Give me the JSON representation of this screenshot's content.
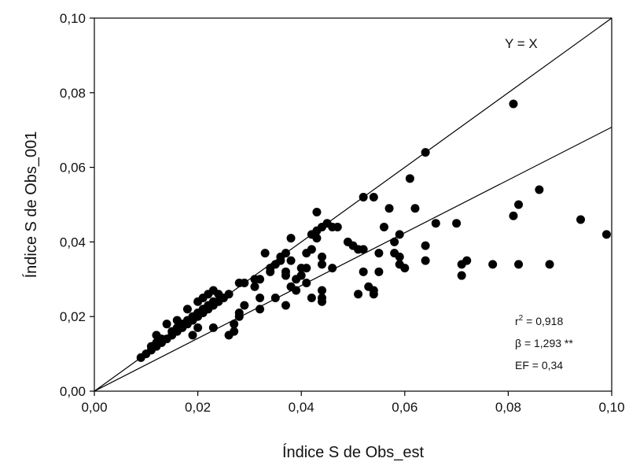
{
  "chart_data": {
    "type": "scatter",
    "title": "",
    "xlabel": "Índice S de Obs_est",
    "ylabel": "Índice S de Obs_001",
    "xlim": [
      0,
      0.1
    ],
    "ylim": [
      0,
      0.1
    ],
    "x_ticks": [
      "0,00",
      "0,02",
      "0,04",
      "0,06",
      "0,08",
      "0,10"
    ],
    "y_ticks": [
      "0,00",
      "0,02",
      "0,04",
      "0,06",
      "0,08",
      "0,10"
    ],
    "grid": false,
    "identity_line": {
      "label": "Y = X",
      "slope": 1.0
    },
    "fit_line": {
      "slope": 0.7076
    },
    "annotations": {
      "r2_prefix": "r",
      "r2_sup": "2",
      "r2_value": " = 0,918",
      "beta": "β = 1,293 **",
      "ef": "EF = 0,34"
    },
    "points": [
      [
        0.009,
        0.009
      ],
      [
        0.01,
        0.01
      ],
      [
        0.011,
        0.011
      ],
      [
        0.011,
        0.012
      ],
      [
        0.012,
        0.012
      ],
      [
        0.012,
        0.013
      ],
      [
        0.013,
        0.013
      ],
      [
        0.013,
        0.014
      ],
      [
        0.014,
        0.014
      ],
      [
        0.015,
        0.015
      ],
      [
        0.015,
        0.016
      ],
      [
        0.016,
        0.016
      ],
      [
        0.016,
        0.017
      ],
      [
        0.017,
        0.017
      ],
      [
        0.017,
        0.018
      ],
      [
        0.018,
        0.018
      ],
      [
        0.018,
        0.019
      ],
      [
        0.019,
        0.019
      ],
      [
        0.019,
        0.02
      ],
      [
        0.02,
        0.02
      ],
      [
        0.02,
        0.021
      ],
      [
        0.021,
        0.021
      ],
      [
        0.021,
        0.022
      ],
      [
        0.022,
        0.022
      ],
      [
        0.022,
        0.023
      ],
      [
        0.023,
        0.023
      ],
      [
        0.023,
        0.024
      ],
      [
        0.024,
        0.024
      ],
      [
        0.025,
        0.025
      ],
      [
        0.026,
        0.026
      ],
      [
        0.012,
        0.015
      ],
      [
        0.014,
        0.018
      ],
      [
        0.016,
        0.019
      ],
      [
        0.018,
        0.022
      ],
      [
        0.02,
        0.024
      ],
      [
        0.021,
        0.025
      ],
      [
        0.022,
        0.026
      ],
      [
        0.023,
        0.027
      ],
      [
        0.024,
        0.026
      ],
      [
        0.019,
        0.015
      ],
      [
        0.02,
        0.017
      ],
      [
        0.023,
        0.017
      ],
      [
        0.026,
        0.015
      ],
      [
        0.027,
        0.016
      ],
      [
        0.027,
        0.018
      ],
      [
        0.028,
        0.021
      ],
      [
        0.028,
        0.02
      ],
      [
        0.029,
        0.023
      ],
      [
        0.028,
        0.029
      ],
      [
        0.029,
        0.029
      ],
      [
        0.031,
        0.03
      ],
      [
        0.031,
        0.028
      ],
      [
        0.032,
        0.03
      ],
      [
        0.032,
        0.025
      ],
      [
        0.032,
        0.022
      ],
      [
        0.033,
        0.037
      ],
      [
        0.034,
        0.033
      ],
      [
        0.035,
        0.034
      ],
      [
        0.035,
        0.025
      ],
      [
        0.036,
        0.035
      ],
      [
        0.036,
        0.036
      ],
      [
        0.037,
        0.032
      ],
      [
        0.037,
        0.031
      ],
      [
        0.037,
        0.037
      ],
      [
        0.038,
        0.035
      ],
      [
        0.038,
        0.041
      ],
      [
        0.038,
        0.028
      ],
      [
        0.039,
        0.03
      ],
      [
        0.039,
        0.027
      ],
      [
        0.04,
        0.033
      ],
      [
        0.04,
        0.031
      ],
      [
        0.041,
        0.029
      ],
      [
        0.041,
        0.037
      ],
      [
        0.042,
        0.038
      ],
      [
        0.042,
        0.042
      ],
      [
        0.043,
        0.041
      ],
      [
        0.043,
        0.043
      ],
      [
        0.043,
        0.048
      ],
      [
        0.044,
        0.044
      ],
      [
        0.044,
        0.036
      ],
      [
        0.044,
        0.034
      ],
      [
        0.044,
        0.027
      ],
      [
        0.044,
        0.025
      ],
      [
        0.044,
        0.024
      ],
      [
        0.042,
        0.025
      ],
      [
        0.041,
        0.033
      ],
      [
        0.045,
        0.045
      ],
      [
        0.046,
        0.044
      ],
      [
        0.046,
        0.033
      ],
      [
        0.037,
        0.023
      ],
      [
        0.049,
        0.04
      ],
      [
        0.05,
        0.039
      ],
      [
        0.051,
        0.038
      ],
      [
        0.051,
        0.026
      ],
      [
        0.052,
        0.038
      ],
      [
        0.052,
        0.052
      ],
      [
        0.052,
        0.032
      ],
      [
        0.053,
        0.028
      ],
      [
        0.054,
        0.027
      ],
      [
        0.054,
        0.026
      ],
      [
        0.054,
        0.052
      ],
      [
        0.055,
        0.037
      ],
      [
        0.055,
        0.032
      ],
      [
        0.056,
        0.044
      ],
      [
        0.057,
        0.049
      ],
      [
        0.058,
        0.037
      ],
      [
        0.059,
        0.042
      ],
      [
        0.059,
        0.036
      ],
      [
        0.059,
        0.034
      ],
      [
        0.06,
        0.033
      ],
      [
        0.061,
        0.057
      ],
      [
        0.062,
        0.049
      ],
      [
        0.064,
        0.064
      ],
      [
        0.064,
        0.039
      ],
      [
        0.064,
        0.035
      ],
      [
        0.066,
        0.045
      ],
      [
        0.07,
        0.045
      ],
      [
        0.071,
        0.034
      ],
      [
        0.071,
        0.031
      ],
      [
        0.072,
        0.035
      ],
      [
        0.077,
        0.034
      ],
      [
        0.081,
        0.077
      ],
      [
        0.081,
        0.047
      ],
      [
        0.082,
        0.05
      ],
      [
        0.082,
        0.034
      ],
      [
        0.086,
        0.054
      ],
      [
        0.088,
        0.034
      ],
      [
        0.094,
        0.046
      ],
      [
        0.099,
        0.042
      ],
      [
        0.058,
        0.04
      ],
      [
        0.047,
        0.044
      ],
      [
        0.034,
        0.032
      ]
    ]
  }
}
